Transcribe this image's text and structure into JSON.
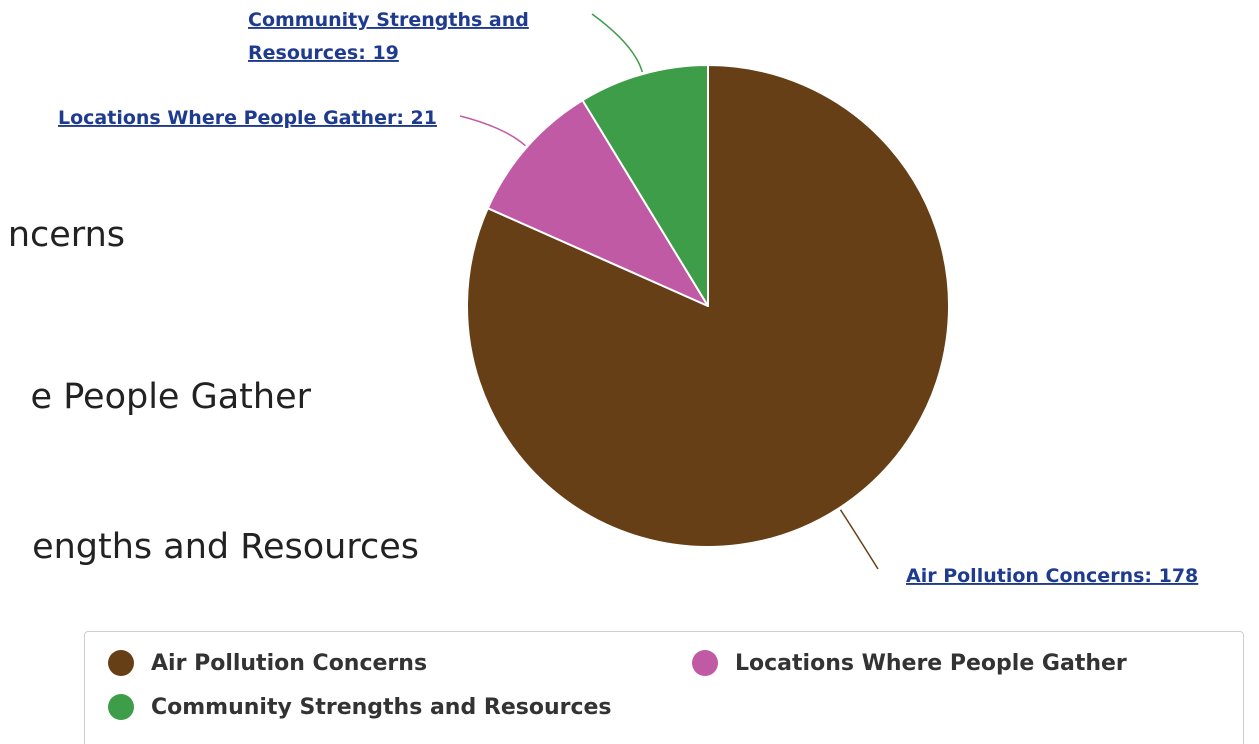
{
  "left_links": [
    {
      "text": "ncerns"
    },
    {
      "text": "e People Gather"
    },
    {
      "text": "engths and Resources"
    }
  ],
  "chart_data": {
    "type": "pie",
    "title": "",
    "categories": [
      "Air Pollution Concerns",
      "Locations Where People Gather",
      "Community Strengths and Resources"
    ],
    "values": [
      178,
      21,
      19
    ],
    "colors": [
      "#673f17",
      "#c05aa4",
      "#3e9d48"
    ],
    "data_labels": [
      [
        "Air Pollution Concerns: 178"
      ],
      [
        "Locations Where People Gather: 21"
      ],
      [
        "Community Strengths and",
        "Resources: 19"
      ]
    ],
    "legend": {
      "placement": "bottom",
      "items": [
        "Air Pollution Concerns",
        "Locations Where People Gather",
        "Community Strengths and Resources"
      ]
    }
  }
}
